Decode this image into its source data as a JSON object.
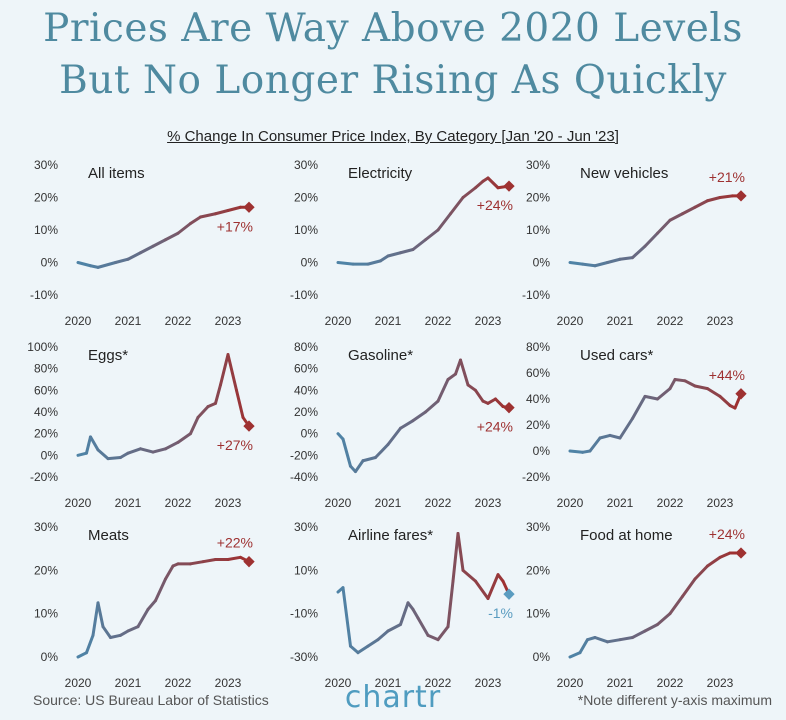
{
  "title_line1": "Prices Are Way Above 2020 Levels",
  "title_line2": "But No Longer Rising As Quickly",
  "subtitle": "% Change In Consumer Price Index, By Category [Jan '20 - Jun '23]",
  "source": "Source: US Bureau Labor of Statistics",
  "logo": "chartr",
  "note": "*Note different y-axis maximum",
  "colors": {
    "start": "#4f83a6",
    "end": "#9e3131",
    "negative_end": "#5a9cc0",
    "title": "#4f8aa0"
  },
  "chart_data": [
    {
      "type": "line",
      "title": "All items",
      "ylim": [
        -10,
        30
      ],
      "yticks": [
        -10,
        0,
        10,
        20,
        30
      ],
      "ytick_labels": [
        "-10%",
        "0%",
        "10%",
        "20%",
        "30%"
      ],
      "xticks": [
        2020,
        2021,
        2022,
        2023
      ],
      "xtick_labels": [
        "2020",
        "2021",
        "2022",
        "2023"
      ],
      "end_label": "+17%",
      "x": [
        2020.0,
        2020.25,
        2020.4,
        2020.75,
        2021.0,
        2021.25,
        2021.5,
        2021.75,
        2022.0,
        2022.25,
        2022.45,
        2022.75,
        2023.0,
        2023.25,
        2023.42
      ],
      "y": [
        0,
        -1,
        -1.5,
        0,
        1,
        3,
        5,
        7,
        9,
        12,
        14,
        15,
        16,
        17,
        17
      ]
    },
    {
      "type": "line",
      "title": "Electricity",
      "ylim": [
        -10,
        30
      ],
      "yticks": [
        -10,
        0,
        10,
        20,
        30
      ],
      "ytick_labels": [
        "-10%",
        "0%",
        "10%",
        "20%",
        "30%"
      ],
      "xticks": [
        2020,
        2021,
        2022,
        2023
      ],
      "xtick_labels": [
        "2020",
        "2021",
        "2022",
        "2023"
      ],
      "end_label": "+24%",
      "x": [
        2020.0,
        2020.3,
        2020.6,
        2020.85,
        2021.0,
        2021.25,
        2021.5,
        2021.75,
        2022.0,
        2022.25,
        2022.5,
        2022.75,
        2022.9,
        2023.0,
        2023.2,
        2023.42
      ],
      "y": [
        0,
        -0.5,
        -0.5,
        0.5,
        2,
        3,
        4,
        7,
        10,
        15,
        20,
        23,
        25,
        26,
        23,
        23.5
      ]
    },
    {
      "type": "line",
      "title": "New vehicles",
      "ylim": [
        -10,
        30
      ],
      "yticks": [
        -10,
        0,
        10,
        20,
        30
      ],
      "ytick_labels": [
        "-10%",
        "0%",
        "10%",
        "20%",
        "30%"
      ],
      "xticks": [
        2020,
        2021,
        2022,
        2023
      ],
      "xtick_labels": [
        "2020",
        "2021",
        "2022",
        "2023"
      ],
      "end_label": "+21%",
      "x": [
        2020.0,
        2020.25,
        2020.5,
        2020.75,
        2021.0,
        2021.25,
        2021.5,
        2021.75,
        2022.0,
        2022.25,
        2022.5,
        2022.75,
        2023.0,
        2023.25,
        2023.42
      ],
      "y": [
        0,
        -0.5,
        -1,
        0,
        1,
        1.5,
        5,
        9,
        13,
        15,
        17,
        19,
        20,
        20.5,
        20.5
      ]
    },
    {
      "type": "line",
      "title": "Eggs*",
      "ylim": [
        -20,
        100
      ],
      "yticks": [
        -20,
        0,
        20,
        40,
        60,
        80,
        100
      ],
      "ytick_labels": [
        "-20%",
        "0%",
        "20%",
        "40%",
        "60%",
        "80%",
        "100%"
      ],
      "xticks": [
        2020,
        2021,
        2022,
        2023
      ],
      "xtick_labels": [
        "2020",
        "2021",
        "2022",
        "2023"
      ],
      "end_label": "+27%",
      "x": [
        2020.0,
        2020.17,
        2020.25,
        2020.4,
        2020.6,
        2020.85,
        2021.0,
        2021.25,
        2021.5,
        2021.75,
        2022.0,
        2022.25,
        2022.4,
        2022.6,
        2022.75,
        2022.85,
        2023.0,
        2023.17,
        2023.3,
        2023.42
      ],
      "y": [
        0,
        2,
        17,
        5,
        -3,
        -2,
        2,
        6,
        3,
        6,
        12,
        20,
        35,
        45,
        48,
        65,
        93,
        60,
        35,
        27
      ]
    },
    {
      "type": "line",
      "title": "Gasoline*",
      "ylim": [
        -40,
        80
      ],
      "yticks": [
        -40,
        -20,
        0,
        20,
        40,
        60,
        80
      ],
      "ytick_labels": [
        "-40%",
        "-20%",
        "0%",
        "20%",
        "40%",
        "60%",
        "80%"
      ],
      "xticks": [
        2020,
        2021,
        2022,
        2023
      ],
      "xtick_labels": [
        "2020",
        "2021",
        "2022",
        "2023"
      ],
      "end_label": "+24%",
      "x": [
        2020.0,
        2020.1,
        2020.25,
        2020.35,
        2020.5,
        2020.75,
        2021.0,
        2021.25,
        2021.5,
        2021.75,
        2022.0,
        2022.2,
        2022.35,
        2022.45,
        2022.6,
        2022.75,
        2022.9,
        2023.0,
        2023.15,
        2023.3,
        2023.42
      ],
      "y": [
        0,
        -5,
        -30,
        -35,
        -25,
        -22,
        -10,
        5,
        12,
        20,
        30,
        50,
        55,
        68,
        45,
        40,
        30,
        28,
        32,
        25,
        24
      ]
    },
    {
      "type": "line",
      "title": "Used cars*",
      "ylim": [
        -20,
        80
      ],
      "yticks": [
        -20,
        0,
        20,
        40,
        60,
        80
      ],
      "ytick_labels": [
        "-20%",
        "0%",
        "20%",
        "40%",
        "60%",
        "80%"
      ],
      "xticks": [
        2020,
        2021,
        2022,
        2023
      ],
      "xtick_labels": [
        "2020",
        "2021",
        "2022",
        "2023"
      ],
      "end_label": "+44%",
      "x": [
        2020.0,
        2020.25,
        2020.4,
        2020.6,
        2020.8,
        2021.0,
        2021.25,
        2021.5,
        2021.75,
        2022.0,
        2022.1,
        2022.3,
        2022.5,
        2022.75,
        2023.0,
        2023.2,
        2023.3,
        2023.42
      ],
      "y": [
        0,
        -1,
        0,
        10,
        12,
        10,
        25,
        42,
        40,
        48,
        55,
        54,
        50,
        48,
        42,
        35,
        33,
        44
      ]
    },
    {
      "type": "line",
      "title": "Meats",
      "ylim": [
        0,
        30
      ],
      "yticks": [
        0,
        10,
        20,
        30
      ],
      "ytick_labels": [
        "0%",
        "10%",
        "20%",
        "30%"
      ],
      "xticks": [
        2020,
        2021,
        2022,
        2023
      ],
      "xtick_labels": [
        "2020",
        "2021",
        "2022",
        "2023"
      ],
      "end_label": "+22%",
      "x": [
        2020.0,
        2020.17,
        2020.3,
        2020.4,
        2020.5,
        2020.65,
        2020.85,
        2021.0,
        2021.2,
        2021.4,
        2021.55,
        2021.75,
        2021.9,
        2022.0,
        2022.25,
        2022.5,
        2022.75,
        2023.0,
        2023.25,
        2023.42
      ],
      "y": [
        0,
        1,
        5,
        12.5,
        7,
        4.5,
        5,
        6,
        7,
        11,
        13,
        18,
        21,
        21.5,
        21.5,
        22,
        22.5,
        22.5,
        23,
        22
      ]
    },
    {
      "type": "line",
      "title": "Airline fares*",
      "ylim": [
        -30,
        30
      ],
      "yticks": [
        -30,
        -10,
        10,
        30
      ],
      "ytick_labels": [
        "-30%",
        "-10%",
        "10%",
        "30%"
      ],
      "xticks": [
        2020,
        2021,
        2022,
        2023
      ],
      "xtick_labels": [
        "2020",
        "2021",
        "2022",
        "2023"
      ],
      "end_label": "-1%",
      "x": [
        2020.0,
        2020.1,
        2020.25,
        2020.4,
        2020.6,
        2020.8,
        2021.0,
        2021.25,
        2021.4,
        2021.5,
        2021.6,
        2021.8,
        2022.0,
        2022.2,
        2022.3,
        2022.4,
        2022.5,
        2022.75,
        2023.0,
        2023.2,
        2023.3,
        2023.42
      ],
      "y": [
        0,
        2,
        -25,
        -28,
        -25,
        -22,
        -18,
        -15,
        -5,
        -8,
        -12,
        -20,
        -22,
        -16,
        5,
        27,
        10,
        5,
        -3,
        8,
        5,
        -1
      ]
    },
    {
      "type": "line",
      "title": "Food at home",
      "ylim": [
        0,
        30
      ],
      "yticks": [
        0,
        10,
        20,
        30
      ],
      "ytick_labels": [
        "0%",
        "10%",
        "20%",
        "30%"
      ],
      "xticks": [
        2020,
        2021,
        2022,
        2023
      ],
      "xtick_labels": [
        "2020",
        "2021",
        "2022",
        "2023"
      ],
      "end_label": "+24%",
      "x": [
        2020.0,
        2020.2,
        2020.35,
        2020.5,
        2020.75,
        2021.0,
        2021.25,
        2021.5,
        2021.75,
        2022.0,
        2022.25,
        2022.5,
        2022.75,
        2023.0,
        2023.2,
        2023.42
      ],
      "y": [
        0,
        1,
        4,
        4.5,
        3.5,
        4,
        4.5,
        6,
        7.5,
        10,
        14,
        18,
        21,
        23,
        24,
        24
      ]
    }
  ]
}
